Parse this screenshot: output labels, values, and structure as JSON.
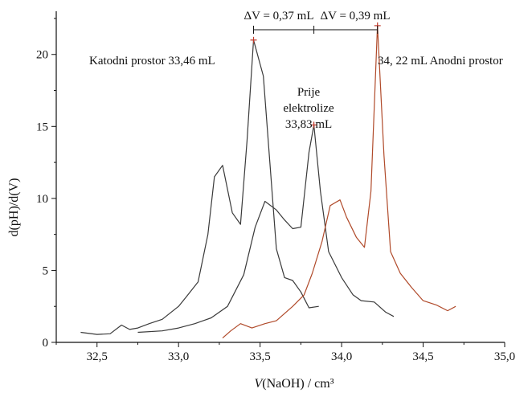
{
  "chart_data": {
    "type": "line",
    "xlabel": "V(NaOH) / cm³",
    "xlabel_prefix": "V",
    "xlabel_rest": "(NaOH) / cm³",
    "ylabel": "d(pH)/d(V)",
    "xlim": [
      32.25,
      35.0
    ],
    "ylim": [
      0,
      23
    ],
    "x_ticks": [
      32.5,
      33.0,
      33.5,
      34.0,
      34.5,
      35.0
    ],
    "x_tick_labels": [
      "32,5",
      "33,0",
      "33,5",
      "34,0",
      "34,5",
      "35,0"
    ],
    "y_ticks": [
      0,
      5,
      10,
      15,
      20
    ],
    "y_tick_labels": [
      "0",
      "5",
      "10",
      "15",
      "20"
    ],
    "grid": false,
    "series": [
      {
        "color": "#3a3a3a",
        "peak": [
          33.46,
          21.0
        ],
        "points": [
          [
            32.4,
            0.7
          ],
          [
            32.5,
            0.55
          ],
          [
            32.58,
            0.6
          ],
          [
            32.65,
            1.2
          ],
          [
            32.7,
            0.9
          ],
          [
            32.75,
            1.0
          ],
          [
            32.82,
            1.3
          ],
          [
            32.9,
            1.6
          ],
          [
            33.0,
            2.5
          ],
          [
            33.05,
            3.2
          ],
          [
            33.12,
            4.2
          ],
          [
            33.18,
            7.5
          ],
          [
            33.22,
            11.5
          ],
          [
            33.27,
            12.3
          ],
          [
            33.33,
            9.0
          ],
          [
            33.38,
            8.2
          ],
          [
            33.42,
            14.0
          ],
          [
            33.46,
            21.0
          ],
          [
            33.52,
            18.5
          ],
          [
            33.56,
            12.5
          ],
          [
            33.6,
            6.5
          ],
          [
            33.65,
            4.5
          ],
          [
            33.7,
            4.3
          ],
          [
            33.75,
            3.5
          ],
          [
            33.8,
            2.4
          ],
          [
            33.86,
            2.5
          ]
        ]
      },
      {
        "color": "#3a3a3a",
        "peak": [
          33.83,
          15.1
        ],
        "points": [
          [
            32.75,
            0.7
          ],
          [
            32.9,
            0.8
          ],
          [
            33.0,
            1.0
          ],
          [
            33.1,
            1.3
          ],
          [
            33.2,
            1.7
          ],
          [
            33.3,
            2.5
          ],
          [
            33.4,
            4.7
          ],
          [
            33.47,
            8.0
          ],
          [
            33.53,
            9.8
          ],
          [
            33.6,
            9.2
          ],
          [
            33.65,
            8.5
          ],
          [
            33.7,
            7.9
          ],
          [
            33.75,
            8.0
          ],
          [
            33.8,
            13.2
          ],
          [
            33.83,
            15.1
          ],
          [
            33.87,
            10.5
          ],
          [
            33.92,
            6.3
          ],
          [
            34.0,
            4.5
          ],
          [
            34.07,
            3.3
          ],
          [
            34.12,
            2.9
          ],
          [
            34.2,
            2.8
          ],
          [
            34.27,
            2.1
          ],
          [
            34.32,
            1.8
          ]
        ]
      },
      {
        "color": "#b04a2a",
        "peak": [
          34.22,
          22.0
        ],
        "points": [
          [
            33.27,
            0.3
          ],
          [
            33.32,
            0.8
          ],
          [
            33.38,
            1.3
          ],
          [
            33.45,
            1.0
          ],
          [
            33.53,
            1.3
          ],
          [
            33.6,
            1.5
          ],
          [
            33.7,
            2.5
          ],
          [
            33.77,
            3.3
          ],
          [
            33.82,
            4.8
          ],
          [
            33.88,
            7.0
          ],
          [
            33.93,
            9.5
          ],
          [
            33.99,
            9.9
          ],
          [
            34.03,
            8.7
          ],
          [
            34.09,
            7.3
          ],
          [
            34.14,
            6.6
          ],
          [
            34.18,
            10.5
          ],
          [
            34.22,
            22.0
          ],
          [
            34.26,
            13.0
          ],
          [
            34.3,
            6.3
          ],
          [
            34.36,
            4.8
          ],
          [
            34.43,
            3.8
          ],
          [
            34.5,
            2.9
          ],
          [
            34.58,
            2.6
          ],
          [
            34.65,
            2.2
          ],
          [
            34.7,
            2.5
          ]
        ]
      }
    ],
    "annotations": {
      "katodni": "Katodni prostor 33,46 mL",
      "prije_line1": "Prije",
      "prije_line2": "elektrolize",
      "prije_line3": "33,83 mL",
      "anodni": "34, 22 mL Anodni prostor"
    },
    "dimension": {
      "x_points": [
        33.46,
        33.83,
        34.22
      ],
      "left_label": "ΔV = 0,37 mL",
      "right_label": "ΔV = 0,39 mL"
    }
  }
}
